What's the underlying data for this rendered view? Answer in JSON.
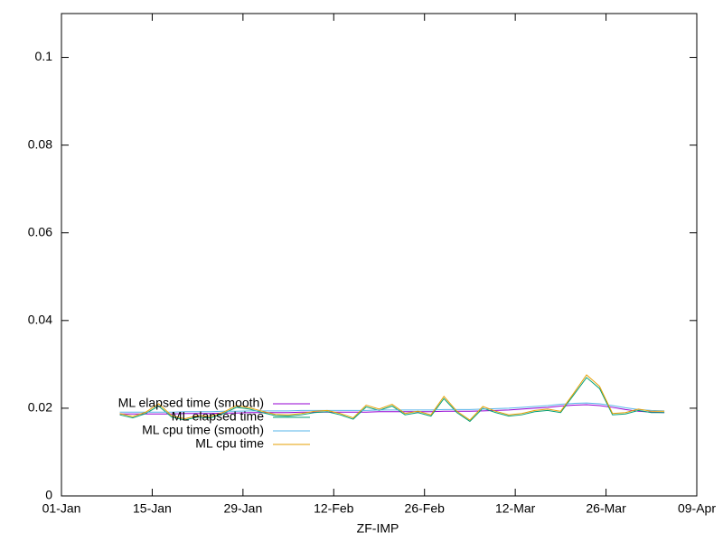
{
  "chart_data": {
    "type": "line",
    "x_label": "ZF-IMP",
    "x": [
      "10-Jan",
      "12-Jan",
      "14-Jan",
      "16-Jan",
      "18-Jan",
      "20-Jan",
      "22-Jan",
      "24-Jan",
      "26-Jan",
      "28-Jan",
      "30-Jan",
      "01-Feb",
      "03-Feb",
      "05-Feb",
      "07-Feb",
      "09-Feb",
      "11-Feb",
      "13-Feb",
      "15-Feb",
      "17-Feb",
      "19-Feb",
      "21-Feb",
      "23-Feb",
      "25-Feb",
      "27-Feb",
      "01-Mar",
      "03-Mar",
      "05-Mar",
      "07-Mar",
      "09-Mar",
      "11-Mar",
      "13-Mar",
      "15-Mar",
      "17-Mar",
      "19-Mar",
      "21-Mar",
      "23-Mar",
      "25-Mar",
      "27-Mar",
      "29-Mar",
      "31-Mar",
      "02-Apr",
      "04-Apr"
    ],
    "series": [
      {
        "name": "ML elapsed time (smooth)",
        "color": "#9400d3",
        "values": [
          0.0187,
          0.0187,
          0.0187,
          0.0187,
          0.0187,
          0.0188,
          0.0188,
          0.0188,
          0.0189,
          0.0189,
          0.019,
          0.019,
          0.019,
          0.019,
          0.0191,
          0.0191,
          0.0191,
          0.0191,
          0.0191,
          0.0191,
          0.0192,
          0.0192,
          0.0192,
          0.0192,
          0.0192,
          0.0193,
          0.0193,
          0.0193,
          0.0194,
          0.0195,
          0.0196,
          0.0198,
          0.02,
          0.0202,
          0.0205,
          0.0207,
          0.0208,
          0.0206,
          0.0202,
          0.0197,
          0.0193,
          0.0191,
          0.019
        ]
      },
      {
        "name": "ML elapsed time",
        "color": "#009e73",
        "values": [
          0.0185,
          0.0178,
          0.0188,
          0.0205,
          0.018,
          0.0173,
          0.018,
          0.0178,
          0.0188,
          0.0202,
          0.0198,
          0.019,
          0.0183,
          0.0182,
          0.0185,
          0.019,
          0.0192,
          0.0185,
          0.0175,
          0.0203,
          0.0195,
          0.0205,
          0.0185,
          0.019,
          0.0182,
          0.0222,
          0.019,
          0.017,
          0.02,
          0.019,
          0.0182,
          0.0185,
          0.0192,
          0.0195,
          0.019,
          0.023,
          0.027,
          0.0245,
          0.0185,
          0.0187,
          0.0195,
          0.019,
          0.019
        ]
      },
      {
        "name": "ML cpu time (smooth)",
        "color": "#56b4e9",
        "values": [
          0.0191,
          0.0191,
          0.0191,
          0.0191,
          0.0191,
          0.0192,
          0.0192,
          0.0192,
          0.0193,
          0.0193,
          0.0194,
          0.0194,
          0.0194,
          0.0194,
          0.0195,
          0.0195,
          0.0195,
          0.0195,
          0.0195,
          0.0195,
          0.0196,
          0.0196,
          0.0196,
          0.0196,
          0.0196,
          0.0197,
          0.0197,
          0.0197,
          0.0198,
          0.0199,
          0.02,
          0.0202,
          0.0204,
          0.0206,
          0.0209,
          0.0211,
          0.0212,
          0.021,
          0.0206,
          0.0201,
          0.0197,
          0.0195,
          0.0194
        ]
      },
      {
        "name": "ML cpu time",
        "color": "#e69f00",
        "values": [
          0.0188,
          0.0181,
          0.0191,
          0.021,
          0.0183,
          0.0176,
          0.0183,
          0.0181,
          0.0191,
          0.0206,
          0.0201,
          0.0193,
          0.0186,
          0.0185,
          0.0188,
          0.0193,
          0.0195,
          0.0188,
          0.0178,
          0.0207,
          0.0198,
          0.0209,
          0.0188,
          0.0193,
          0.0185,
          0.0227,
          0.0193,
          0.0173,
          0.0204,
          0.0193,
          0.0185,
          0.0188,
          0.0195,
          0.0198,
          0.0193,
          0.0234,
          0.0276,
          0.025,
          0.0188,
          0.019,
          0.0198,
          0.0193,
          0.0193
        ]
      }
    ],
    "xlim": [
      "01-Jan",
      "09-Apr"
    ],
    "xticks": [
      "01-Jan",
      "15-Jan",
      "29-Jan",
      "12-Feb",
      "26-Feb",
      "12-Mar",
      "26-Mar",
      "09-Apr"
    ],
    "ylim": [
      0,
      0.11
    ],
    "yticks": [
      0,
      0.02,
      0.04,
      0.06,
      0.08,
      0.1
    ],
    "legend": "bottom-left",
    "grid": false
  }
}
